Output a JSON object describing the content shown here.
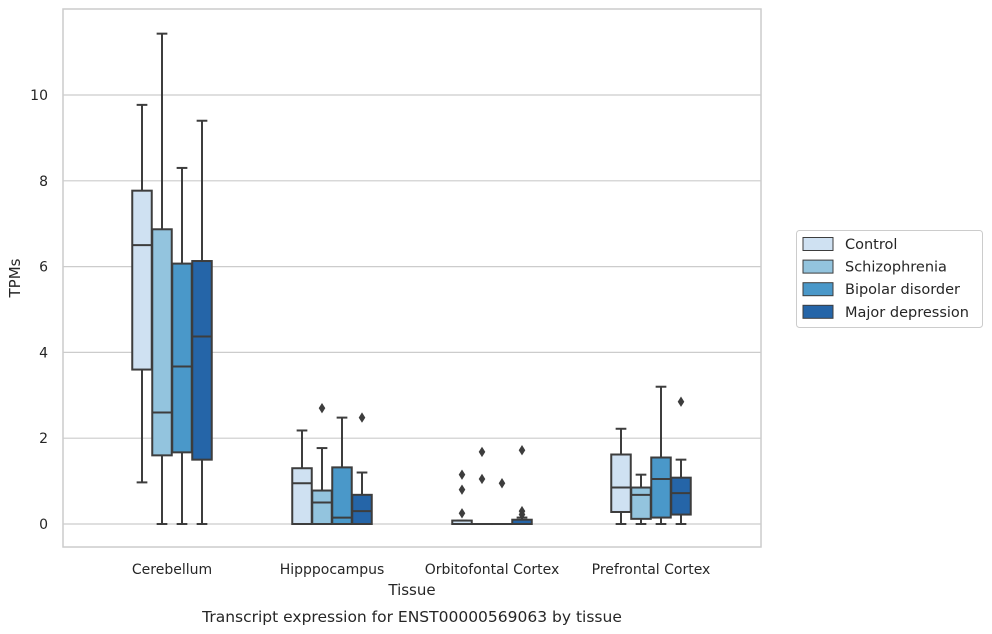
{
  "chart_data": {
    "type": "box",
    "title": "",
    "caption": "Transcript expression for ENST00000569063 by tissue",
    "xlabel": "Tissue",
    "ylabel": "TPMs",
    "ylim": [
      -0.55,
      12.0
    ],
    "yticks": [
      0,
      2,
      4,
      6,
      8,
      10
    ],
    "grid": "horizontal",
    "legend_position": "right",
    "categories": [
      "Cerebellum",
      "Hipppocampus",
      "Orbitofontal Cortex",
      "Prefrontal Cortex"
    ],
    "series": [
      {
        "name": "Control",
        "color": "#cfe1f2",
        "boxes": [
          {
            "whisker_low": 0.97,
            "q1": 3.6,
            "median": 6.5,
            "q3": 7.77,
            "whisker_high": 9.77,
            "outliers": []
          },
          {
            "whisker_low": 0.0,
            "q1": 0.0,
            "median": 0.95,
            "q3": 1.3,
            "whisker_high": 2.18,
            "outliers": []
          },
          {
            "whisker_low": 0.0,
            "q1": 0.0,
            "median": 0.0,
            "q3": 0.08,
            "whisker_high": 0.08,
            "outliers": [
              0.25,
              0.8,
              1.15
            ]
          },
          {
            "whisker_low": 0.0,
            "q1": 0.28,
            "median": 0.85,
            "q3": 1.62,
            "whisker_high": 2.22,
            "outliers": []
          }
        ]
      },
      {
        "name": "Schizophrenia",
        "color": "#93c4de",
        "boxes": [
          {
            "whisker_low": 0.0,
            "q1": 1.6,
            "median": 2.6,
            "q3": 6.87,
            "whisker_high": 11.43,
            "outliers": []
          },
          {
            "whisker_low": 0.0,
            "q1": 0.0,
            "median": 0.5,
            "q3": 0.78,
            "whisker_high": 1.77,
            "outliers": [
              2.7
            ]
          },
          {
            "whisker_low": 0.0,
            "q1": 0.0,
            "median": 0.0,
            "q3": 0.0,
            "whisker_high": 0.0,
            "outliers": [
              1.05,
              1.68
            ]
          },
          {
            "whisker_low": 0.0,
            "q1": 0.12,
            "median": 0.68,
            "q3": 0.85,
            "whisker_high": 1.15,
            "outliers": []
          }
        ]
      },
      {
        "name": "Bipolar disorder",
        "color": "#4a98c9",
        "boxes": [
          {
            "whisker_low": 0.0,
            "q1": 1.67,
            "median": 3.67,
            "q3": 6.07,
            "whisker_high": 8.3,
            "outliers": []
          },
          {
            "whisker_low": 0.0,
            "q1": 0.0,
            "median": 0.15,
            "q3": 1.32,
            "whisker_high": 2.48,
            "outliers": []
          },
          {
            "whisker_low": 0.0,
            "q1": 0.0,
            "median": 0.0,
            "q3": 0.0,
            "whisker_high": 0.0,
            "outliers": [
              0.95
            ]
          },
          {
            "whisker_low": 0.0,
            "q1": 0.15,
            "median": 1.05,
            "q3": 1.55,
            "whisker_high": 3.2,
            "outliers": []
          }
        ]
      },
      {
        "name": "Major depression",
        "color": "#2565a8",
        "boxes": [
          {
            "whisker_low": 0.0,
            "q1": 1.5,
            "median": 4.37,
            "q3": 6.13,
            "whisker_high": 9.4,
            "outliers": []
          },
          {
            "whisker_low": 0.0,
            "q1": 0.0,
            "median": 0.3,
            "q3": 0.68,
            "whisker_high": 1.2,
            "outliers": [
              2.48
            ]
          },
          {
            "whisker_low": 0.0,
            "q1": 0.0,
            "median": 0.0,
            "q3": 0.1,
            "whisker_high": 0.15,
            "outliers": [
              0.22,
              0.3,
              1.72
            ]
          },
          {
            "whisker_low": 0.0,
            "q1": 0.22,
            "median": 0.72,
            "q3": 1.08,
            "whisker_high": 1.5,
            "outliers": [
              2.85
            ]
          }
        ]
      }
    ]
  }
}
